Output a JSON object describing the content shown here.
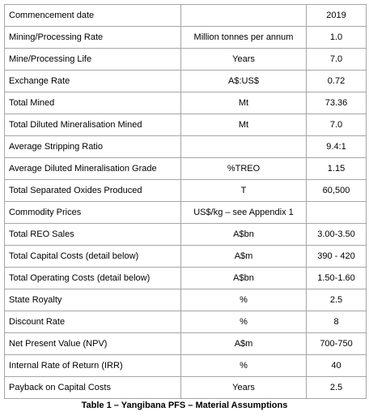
{
  "table": {
    "rows": [
      [
        "Commencement date",
        null,
        "2019"
      ],
      [
        "Mining/Processing Rate",
        "Million tonnes per annum",
        "1.0"
      ],
      [
        "Mine/Processing Life",
        "Years",
        "7.0"
      ],
      [
        "Exchange Rate",
        "A$:US$",
        "0.72"
      ],
      [
        "Total Mined",
        "Mt",
        "73.36"
      ],
      [
        "Total Diluted Mineralisation Mined",
        "Mt",
        "7.0"
      ],
      [
        "Average Stripping Ratio",
        null,
        "9.4:1"
      ],
      [
        "Average Diluted Mineralisation Grade",
        "%TREO",
        "1.15"
      ],
      [
        "Total Separated Oxides Produced",
        "T",
        "60,500"
      ],
      [
        "Commodity Prices",
        "US$/kg – see Appendix 1",
        null
      ],
      [
        "Total REO Sales",
        "A$bn",
        "3.00-3.50"
      ],
      [
        "Total Capital Costs (detail below)",
        "A$m",
        "390 - 420"
      ],
      [
        "Total Operating Costs (detail below)",
        "A$bn",
        "1.50-1.60"
      ],
      [
        "State Royalty",
        "%",
        "2.5"
      ],
      [
        "Discount Rate",
        "%",
        "8"
      ],
      [
        "Net Present Value (NPV)",
        "A$m",
        "700-750"
      ],
      [
        "Internal Rate of Return (IRR)",
        "%",
        "40"
      ],
      [
        "Payback on Capital Costs",
        "Years",
        "2.5"
      ]
    ]
  },
  "caption": "Table 1 – Yangibana PFS – Material Assumptions"
}
